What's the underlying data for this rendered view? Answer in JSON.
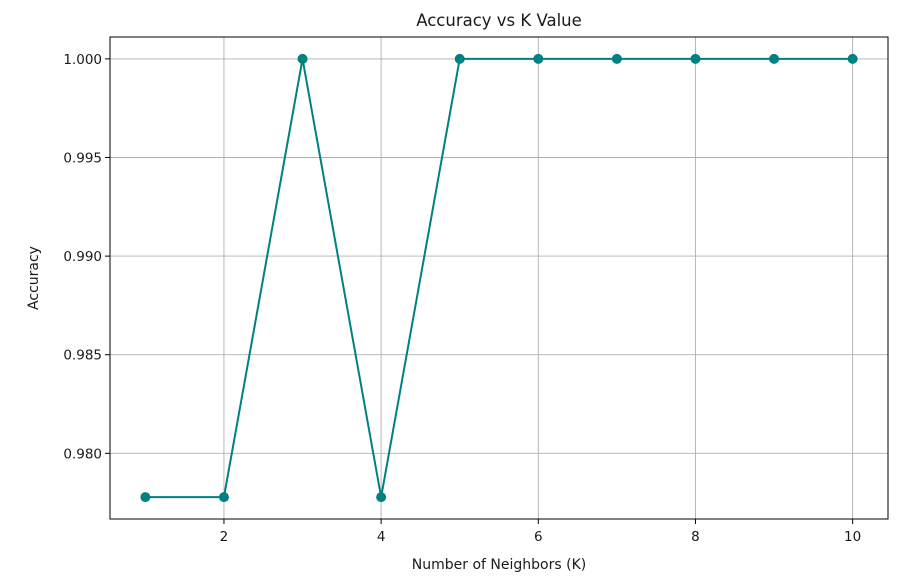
{
  "chart_data": {
    "type": "line",
    "title": "Accuracy vs K Value",
    "xlabel": "Number of Neighbors (K)",
    "ylabel": "Accuracy",
    "xlim": [
      0.55,
      10.45
    ],
    "ylim": [
      0.97667,
      1.00111
    ],
    "xticks": [
      2,
      4,
      6,
      8,
      10
    ],
    "xtick_labels": [
      "2",
      "4",
      "6",
      "8",
      "10"
    ],
    "yticks": [
      0.98,
      0.985,
      0.99,
      0.995,
      1.0
    ],
    "ytick_labels": [
      "0.980",
      "0.985",
      "0.990",
      "0.995",
      "1.000"
    ],
    "grid": true,
    "color": "#008080",
    "series": [
      {
        "x": [
          1,
          2,
          3,
          4,
          5,
          6,
          7,
          8,
          9,
          10
        ],
        "values": [
          0.97778,
          0.97778,
          1.0,
          0.97778,
          1.0,
          1.0,
          1.0,
          1.0,
          1.0,
          1.0
        ]
      }
    ]
  }
}
